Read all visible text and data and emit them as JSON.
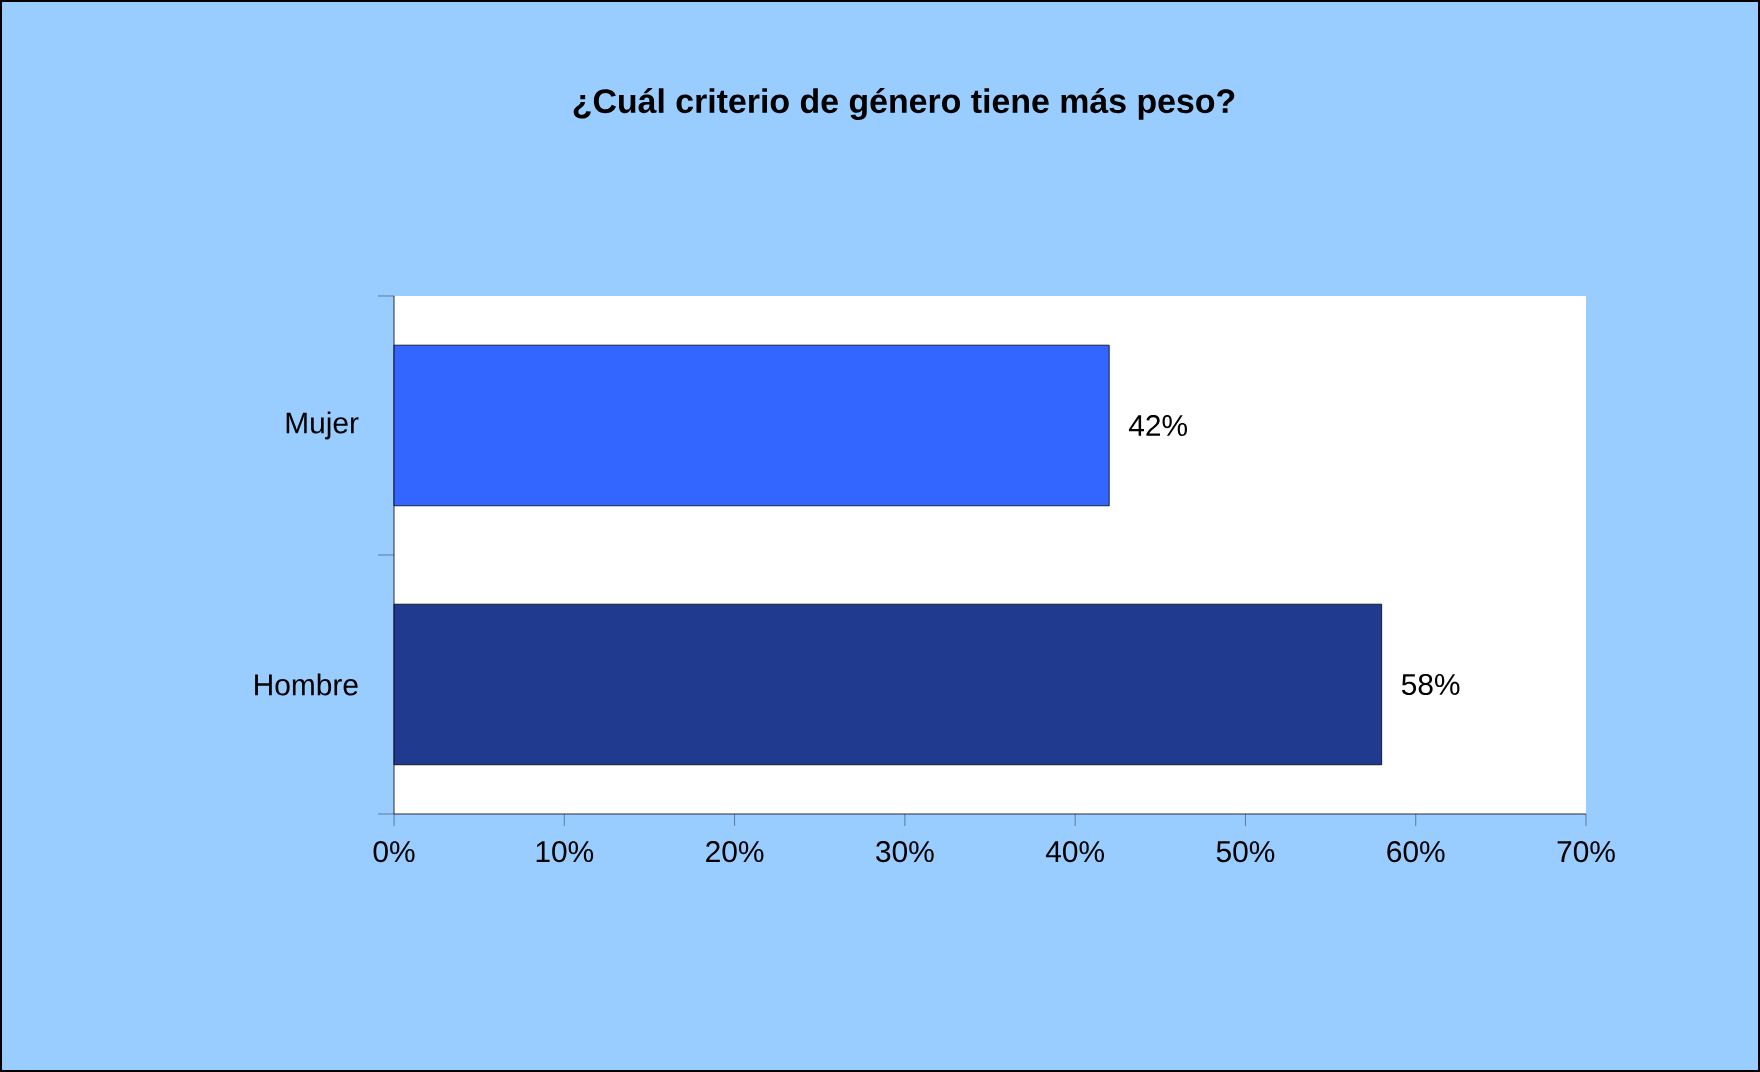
{
  "chart_data": {
    "type": "bar",
    "orientation": "horizontal",
    "title": "¿Cuál criterio de género tiene más peso?",
    "categories": [
      "Mujer",
      "Hombre"
    ],
    "values": [
      42,
      58
    ],
    "colors": [
      "#3366ff",
      "#1f3a8f"
    ],
    "value_labels": [
      "42%",
      "58%"
    ],
    "xlim": [
      0,
      70
    ],
    "xticks": [
      {
        "value": 0,
        "label": "0%"
      },
      {
        "value": 10,
        "label": "10%"
      },
      {
        "value": 20,
        "label": "20%"
      },
      {
        "value": 30,
        "label": "30%"
      },
      {
        "value": 40,
        "label": "40%"
      },
      {
        "value": 50,
        "label": "50%"
      },
      {
        "value": 60,
        "label": "60%"
      },
      {
        "value": 70,
        "label": "70%"
      }
    ],
    "xlabel": null
  }
}
